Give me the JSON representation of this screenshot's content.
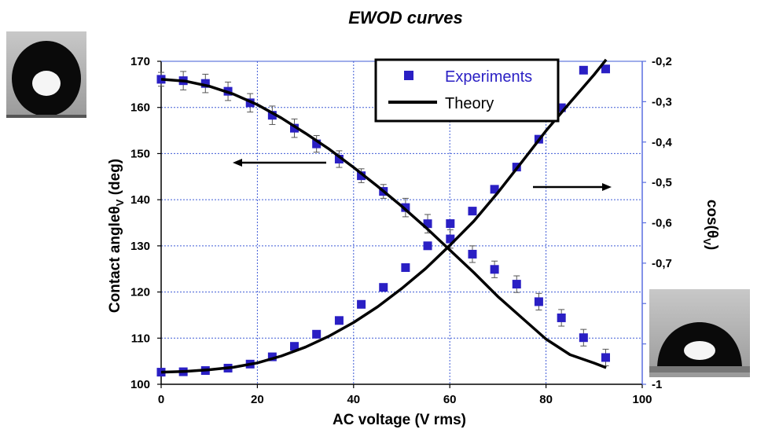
{
  "chart_data": {
    "type": "scatter",
    "title": "EWOD curves",
    "xlabel": "AC voltage (V rms)",
    "ylabel_left": "Contact angleθ",
    "ylabel_left_sub": "V",
    "ylabel_left_unit": " (deg)",
    "ylabel_right": "cos(θ",
    "ylabel_right_sub": "V",
    "ylabel_right_unit": ")",
    "xlim": [
      0,
      100
    ],
    "ylim_left": [
      100,
      170
    ],
    "ylim_right": [
      -1.0,
      -0.2
    ],
    "x_ticks": [
      0,
      20,
      40,
      60,
      80,
      100
    ],
    "x_tick_labels": [
      "0",
      "20",
      "40",
      "60",
      "80",
      "100"
    ],
    "y_left_ticks": [
      100,
      110,
      120,
      130,
      140,
      150,
      160,
      170
    ],
    "y_left_tick_labels": [
      "100",
      "110",
      "120",
      "130",
      "140",
      "150",
      "160",
      "170"
    ],
    "y_right_ticks": [
      -1.0,
      -0.9,
      -0.8,
      -0.7,
      -0.6,
      -0.5,
      -0.4,
      -0.3,
      -0.2
    ],
    "y_right_tick_labels": [
      "-1",
      "",
      "-0,8",
      "-0,7",
      "-0,6",
      "-0,5",
      "-0,4",
      "-0,3",
      "-0,2"
    ],
    "grid": true,
    "legend": {
      "position": "top-center",
      "entries": [
        "Experiments",
        "Theory"
      ]
    },
    "series": [
      {
        "name": "Experiments",
        "axis": "left",
        "marker": "square",
        "x": [
          0,
          4.6,
          9.2,
          13.9,
          18.5,
          23.1,
          27.7,
          32.3,
          37.0,
          41.6,
          46.2,
          50.8,
          55.4,
          60.1,
          64.7,
          69.3,
          73.9,
          78.5,
          83.2,
          87.8,
          92.4
        ],
        "y": [
          166.1,
          165.8,
          165.2,
          163.5,
          161.0,
          158.3,
          155.5,
          152.1,
          148.8,
          145.2,
          141.8,
          138.3,
          134.8,
          131.5,
          128.2,
          124.9,
          121.7,
          117.9,
          114.4,
          110.1,
          105.8
        ],
        "error": [
          1.5,
          2.0,
          2.0,
          2.0,
          2.0,
          2.0,
          2.0,
          1.8,
          1.8,
          1.5,
          1.5,
          2.0,
          2.0,
          2.0,
          1.8,
          1.8,
          1.8,
          1.8,
          1.8,
          1.8,
          1.8
        ]
      },
      {
        "name": "Theory",
        "axis": "left",
        "line": true,
        "x": [
          0,
          5,
          10,
          15,
          20,
          25,
          30,
          35,
          40,
          45,
          50,
          55,
          60,
          65,
          70,
          75,
          80,
          85,
          90,
          92.5
        ],
        "y": [
          166.1,
          165.7,
          164.6,
          162.9,
          160.6,
          157.7,
          154.4,
          150.9,
          147.0,
          142.9,
          138.6,
          134.0,
          129.1,
          124.2,
          119.0,
          114.4,
          109.8,
          106.4,
          104.6,
          103.6
        ]
      },
      {
        "name": "",
        "axis": "right",
        "marker": "square",
        "x": [
          0,
          4.6,
          9.2,
          13.9,
          18.5,
          23.1,
          27.7,
          32.3,
          37.0,
          41.6,
          46.2,
          50.8,
          55.4,
          60.1,
          64.7,
          69.3,
          73.9,
          78.5,
          83.2,
          87.8,
          92.4
        ],
        "y": [
          -0.97,
          -0.969,
          -0.966,
          -0.96,
          -0.95,
          -0.932,
          -0.906,
          -0.876,
          -0.842,
          -0.802,
          -0.76,
          -0.711,
          -0.657,
          -0.602,
          -0.571,
          -0.517,
          -0.462,
          -0.393,
          -0.315,
          -0.222,
          -0.219
        ]
      },
      {
        "name": "",
        "axis": "right",
        "line": true,
        "x": [
          0,
          5,
          10,
          15,
          20,
          25,
          30,
          35,
          40,
          45,
          50,
          55,
          60,
          65,
          70,
          75,
          80,
          85,
          90,
          92.5
        ],
        "y": [
          -0.97,
          -0.968,
          -0.964,
          -0.958,
          -0.947,
          -0.93,
          -0.908,
          -0.88,
          -0.847,
          -0.808,
          -0.763,
          -0.713,
          -0.656,
          -0.596,
          -0.525,
          -0.449,
          -0.372,
          -0.302,
          -0.233,
          -0.196
        ]
      }
    ],
    "annotations": [
      {
        "type": "arrow",
        "direction": "left",
        "meaning": "left-axis curve"
      },
      {
        "type": "arrow",
        "direction": "right",
        "meaning": "right-axis curve"
      }
    ],
    "images": [
      {
        "name": "droplet-photo-top-left",
        "description_label": ""
      },
      {
        "name": "droplet-photo-bottom-right",
        "description_label": ""
      }
    ],
    "colors": {
      "marker": "#2a1fc4",
      "line": "#000000",
      "grid": "#3f5bd6",
      "axis": "#000000",
      "right_axis": "#5a6fe0",
      "legend_text": "#2a1fc4"
    }
  }
}
